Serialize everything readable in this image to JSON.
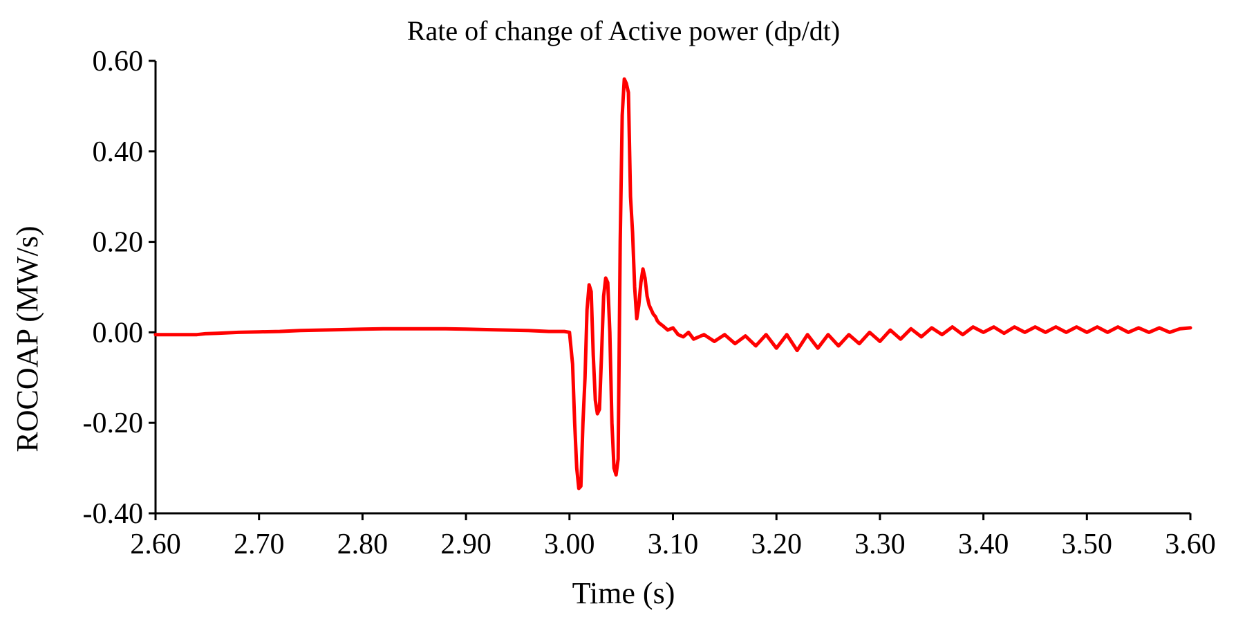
{
  "chart_data": {
    "type": "line",
    "title": "Rate of change of Active power (dp/dt)",
    "xlabel": "Time (s)",
    "ylabel": "ROCOAP (MW/s)",
    "xlim": [
      2.6,
      3.6
    ],
    "ylim": [
      -0.4,
      0.6
    ],
    "x_ticks": [
      "2.60",
      "2.70",
      "2.80",
      "2.90",
      "3.00",
      "3.10",
      "3.20",
      "3.30",
      "3.40",
      "3.50",
      "3.60"
    ],
    "y_ticks": [
      "0.60",
      "0.40",
      "0.20",
      "0.00",
      "-0.20",
      "-0.40"
    ],
    "x_tick_values": [
      2.6,
      2.7,
      2.8,
      2.9,
      3.0,
      3.1,
      3.2,
      3.3,
      3.4,
      3.5,
      3.6
    ],
    "y_tick_values": [
      0.6,
      0.4,
      0.2,
      0.0,
      -0.2,
      -0.4
    ],
    "grid": false,
    "series": [
      {
        "name": "ROCOAP",
        "color": "#ff0000",
        "x": [
          2.6,
          2.64,
          2.648,
          2.66,
          2.68,
          2.7,
          2.72,
          2.74,
          2.76,
          2.78,
          2.8,
          2.82,
          2.84,
          2.86,
          2.88,
          2.9,
          2.92,
          2.94,
          2.96,
          2.98,
          2.995,
          3.0,
          3.003,
          3.005,
          3.007,
          3.009,
          3.011,
          3.013,
          3.015,
          3.017,
          3.019,
          3.021,
          3.023,
          3.025,
          3.027,
          3.029,
          3.031,
          3.033,
          3.035,
          3.037,
          3.039,
          3.041,
          3.043,
          3.045,
          3.047,
          3.049,
          3.051,
          3.053,
          3.055,
          3.057,
          3.059,
          3.061,
          3.063,
          3.065,
          3.067,
          3.069,
          3.071,
          3.073,
          3.075,
          3.077,
          3.079,
          3.081,
          3.083,
          3.085,
          3.087,
          3.09,
          3.095,
          3.1,
          3.105,
          3.11,
          3.115,
          3.12,
          3.13,
          3.14,
          3.15,
          3.16,
          3.17,
          3.18,
          3.19,
          3.2,
          3.21,
          3.22,
          3.23,
          3.24,
          3.25,
          3.26,
          3.27,
          3.28,
          3.29,
          3.3,
          3.31,
          3.32,
          3.33,
          3.34,
          3.35,
          3.36,
          3.37,
          3.38,
          3.39,
          3.4,
          3.41,
          3.42,
          3.43,
          3.44,
          3.45,
          3.46,
          3.47,
          3.48,
          3.49,
          3.5,
          3.51,
          3.52,
          3.53,
          3.54,
          3.55,
          3.56,
          3.57,
          3.58,
          3.59,
          3.6
        ],
        "y": [
          -0.005,
          -0.005,
          -0.003,
          -0.002,
          0.0,
          0.001,
          0.002,
          0.004,
          0.005,
          0.006,
          0.007,
          0.008,
          0.008,
          0.008,
          0.008,
          0.007,
          0.006,
          0.005,
          0.004,
          0.002,
          0.002,
          0.0,
          -0.07,
          -0.2,
          -0.3,
          -0.345,
          -0.34,
          -0.2,
          -0.1,
          0.05,
          0.105,
          0.09,
          -0.05,
          -0.15,
          -0.18,
          -0.17,
          -0.05,
          0.08,
          0.12,
          0.11,
          0.0,
          -0.2,
          -0.3,
          -0.315,
          -0.28,
          0.2,
          0.48,
          0.56,
          0.55,
          0.53,
          0.3,
          0.22,
          0.1,
          0.03,
          0.06,
          0.11,
          0.14,
          0.12,
          0.08,
          0.06,
          0.05,
          0.04,
          0.035,
          0.025,
          0.02,
          0.015,
          0.005,
          0.01,
          -0.005,
          -0.01,
          0.0,
          -0.015,
          -0.005,
          -0.02,
          -0.005,
          -0.025,
          -0.008,
          -0.03,
          -0.005,
          -0.035,
          -0.005,
          -0.04,
          -0.005,
          -0.035,
          -0.005,
          -0.03,
          -0.005,
          -0.025,
          0.0,
          -0.02,
          0.005,
          -0.015,
          0.008,
          -0.01,
          0.01,
          -0.005,
          0.012,
          -0.005,
          0.012,
          0.0,
          0.012,
          -0.002,
          0.012,
          0.0,
          0.012,
          0.0,
          0.012,
          0.0,
          0.012,
          0.0,
          0.012,
          0.0,
          0.012,
          0.0,
          0.01,
          0.0,
          0.01,
          0.0,
          0.008,
          0.01
        ]
      }
    ]
  }
}
